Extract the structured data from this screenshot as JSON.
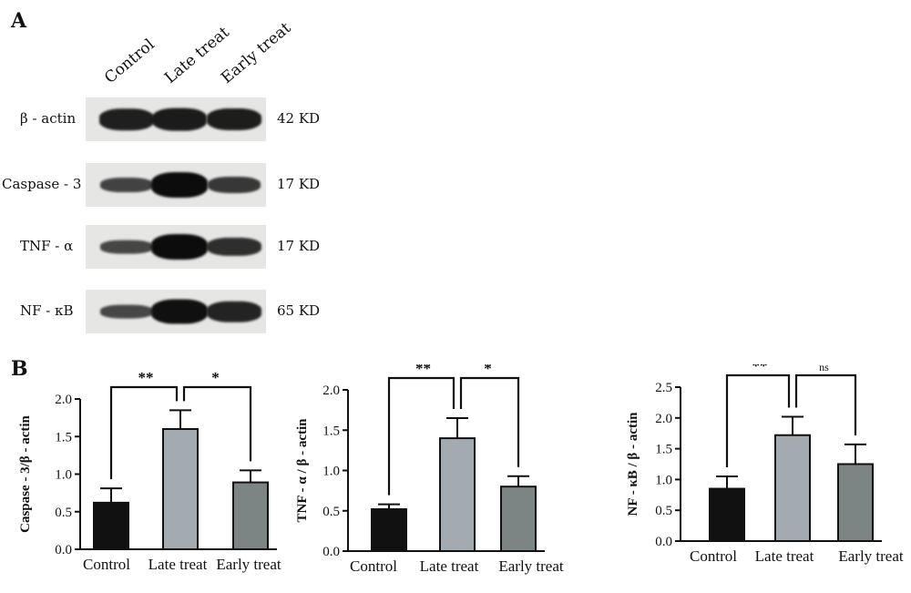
{
  "panel_a": {
    "label": "A",
    "lanes": [
      "Control",
      "Late treat",
      "Early treat"
    ],
    "rows": [
      {
        "protein": "β - actin",
        "kd": "42 KD",
        "intensity": [
          0.8,
          0.85,
          0.82
        ]
      },
      {
        "protein": "Caspase - 3",
        "kd": "17 KD",
        "intensity": [
          0.45,
          1.0,
          0.55
        ]
      },
      {
        "protein": "TNF - α",
        "kd": "17 KD",
        "intensity": [
          0.4,
          1.0,
          0.65
        ]
      },
      {
        "protein": "NF - κB",
        "kd": "65 KD",
        "intensity": [
          0.4,
          0.95,
          0.75
        ]
      }
    ]
  },
  "panel_b": {
    "label": "B"
  },
  "colors": {
    "control": "#111111",
    "late": "#a3aab0",
    "early": "#7d8584"
  },
  "chart_data": [
    {
      "type": "bar",
      "categories": [
        "Control",
        "Late treat",
        "Early treat"
      ],
      "values": [
        0.62,
        1.6,
        0.89
      ],
      "errors": [
        0.19,
        0.25,
        0.16
      ],
      "ylabel": "Caspase - 3/β - actin",
      "ylim": [
        0,
        2.0
      ],
      "yticks": [
        "0.0",
        "0.5",
        "1.0",
        "1.5",
        "2.0"
      ],
      "yticks_values": [
        0,
        0.5,
        1.0,
        1.5,
        2.0
      ],
      "significance": [
        {
          "from": 0,
          "to": 1,
          "label": "**"
        },
        {
          "from": 1,
          "to": 2,
          "label": "*"
        }
      ]
    },
    {
      "type": "bar",
      "categories": [
        "Control",
        "Late treat",
        "Early treat"
      ],
      "values": [
        0.52,
        1.4,
        0.8
      ],
      "errors": [
        0.06,
        0.25,
        0.13
      ],
      "ylabel": "TNF - α / β - actin",
      "ylim": [
        0,
        2.0
      ],
      "yticks": [
        "0.0",
        "0.5",
        "1.0",
        "1.5",
        "2.0"
      ],
      "yticks_values": [
        0,
        0.5,
        1.0,
        1.5,
        2.0
      ],
      "significance": [
        {
          "from": 0,
          "to": 1,
          "label": "**"
        },
        {
          "from": 1,
          "to": 2,
          "label": "*"
        }
      ]
    },
    {
      "type": "bar",
      "categories": [
        "Control",
        "Late treat",
        "Early treat"
      ],
      "values": [
        0.85,
        1.72,
        1.25
      ],
      "errors": [
        0.2,
        0.3,
        0.32
      ],
      "ylabel": "NF - κB / β - actin",
      "ylim": [
        0,
        2.5
      ],
      "yticks": [
        "0.0",
        "0.5",
        "1.0",
        "1.5",
        "2.0",
        "2.5"
      ],
      "yticks_values": [
        0,
        0.5,
        1.0,
        1.5,
        2.0,
        2.5
      ],
      "significance": [
        {
          "from": 0,
          "to": 1,
          "label": "**"
        },
        {
          "from": 1,
          "to": 2,
          "label": "ns"
        }
      ]
    }
  ]
}
